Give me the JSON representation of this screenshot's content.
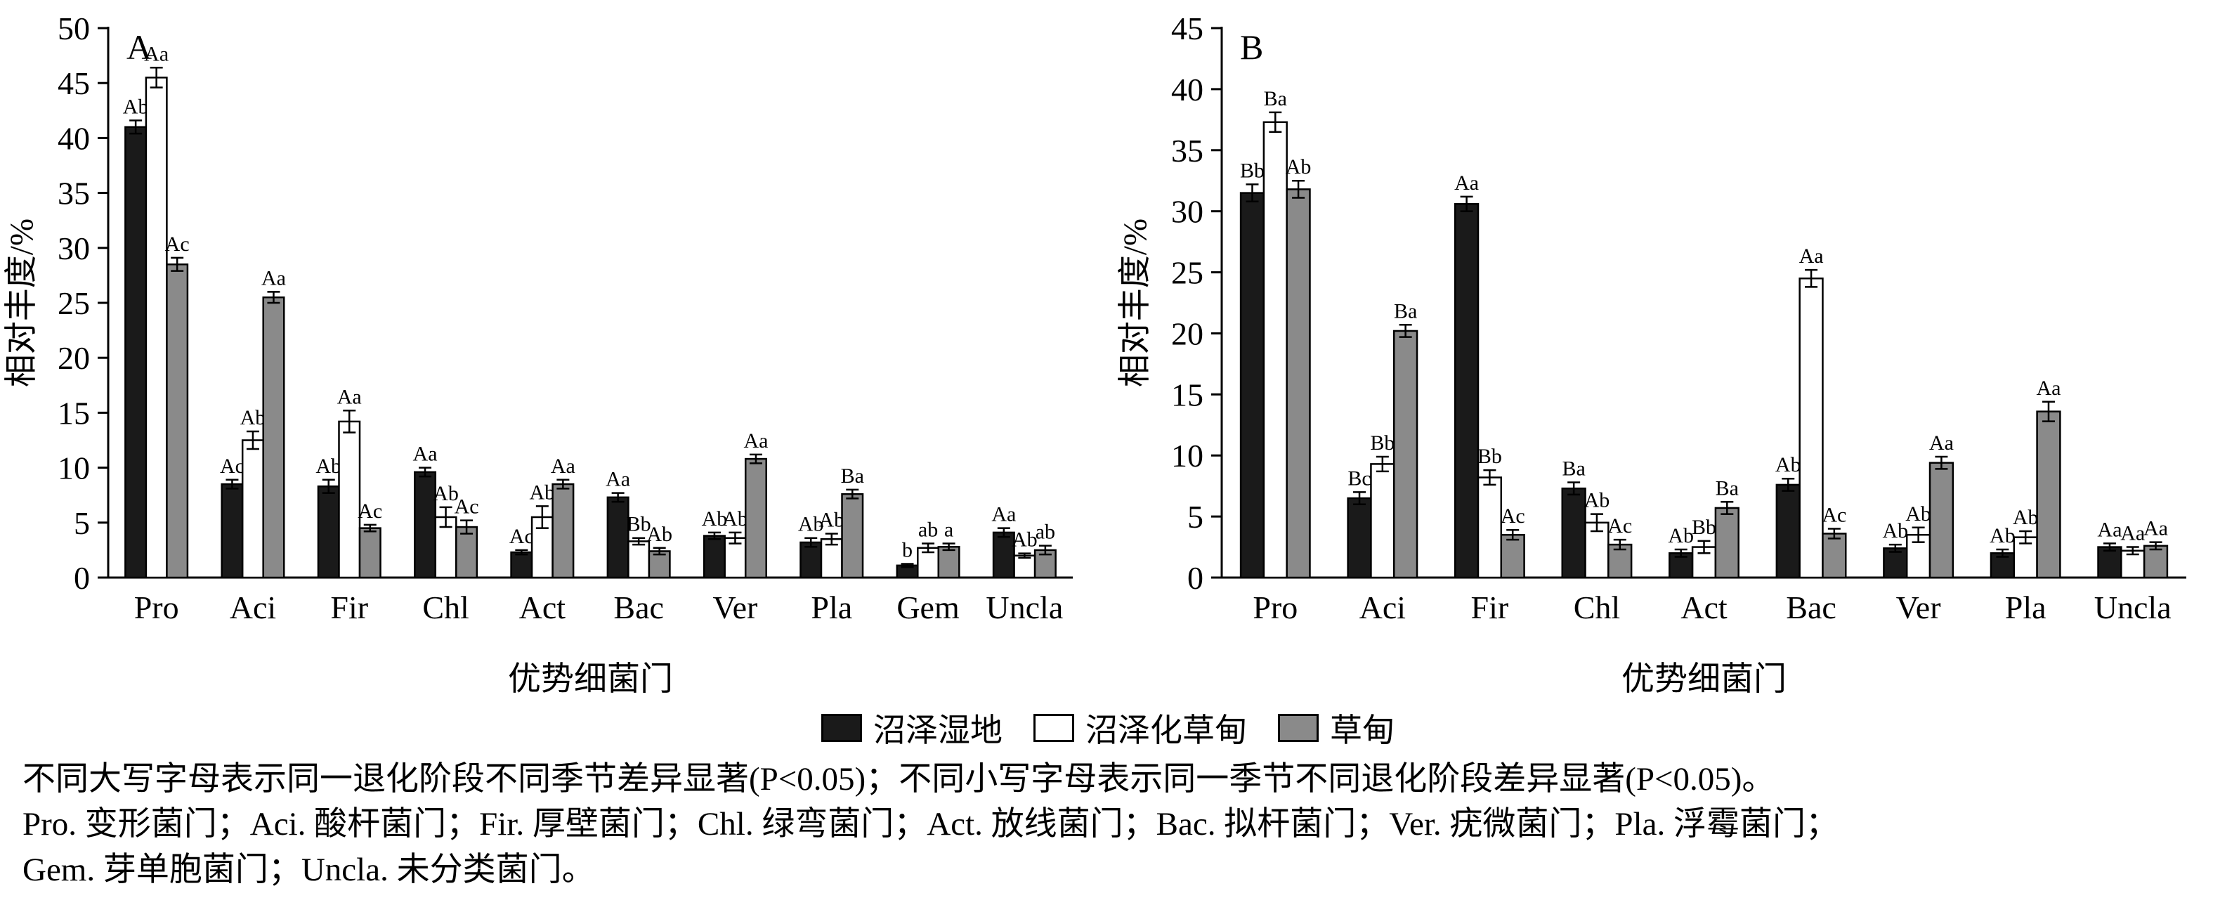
{
  "figure": {
    "legend": {
      "items": [
        {
          "label": "沼泽湿地",
          "fill": "#1a1a1a",
          "stroke": "#000000"
        },
        {
          "label": "沼泽化草甸",
          "fill": "#ffffff",
          "stroke": "#000000"
        },
        {
          "label": "草甸",
          "fill": "#8a8a8a",
          "stroke": "#000000"
        }
      ]
    },
    "caption_lines": [
      "不同大写字母表示同一退化阶段不同季节差异显著(P<0.05)；不同小写字母表示同一季节不同退化阶段差异显著(P<0.05)。",
      "Pro. 变形菌门；Aci. 酸杆菌门；Fir. 厚壁菌门；Chl. 绿弯菌门；Act. 放线菌门；Bac. 拟杆菌门；Ver. 疣微菌门；Pla. 浮霉菌门；",
      "Gem. 芽单胞菌门；Uncla. 未分类菌门。"
    ]
  },
  "chart_data": [
    {
      "type": "bar",
      "panel_label": "A",
      "xlabel": "优势细菌门",
      "ylabel": "相对丰度/%",
      "ylim": [
        0,
        50
      ],
      "ytick_step": 5,
      "grid": false,
      "categories": [
        "Pro",
        "Aci",
        "Fir",
        "Chl",
        "Act",
        "Bac",
        "Ver",
        "Pla",
        "Gem",
        "Uncla"
      ],
      "series": [
        {
          "name": "沼泽湿地",
          "values": [
            41.0,
            8.5,
            8.3,
            9.6,
            2.3,
            7.3,
            3.8,
            3.2,
            1.1,
            4.1
          ],
          "errors": [
            0.6,
            0.4,
            0.6,
            0.4,
            0.2,
            0.4,
            0.3,
            0.4,
            0.15,
            0.4
          ],
          "labels": [
            "Ab",
            "Ac",
            "Ab",
            "Aa",
            "Ac",
            "Aa",
            "Ab",
            "Ab",
            "b",
            "Aa"
          ]
        },
        {
          "name": "沼泽化草甸",
          "values": [
            45.5,
            12.5,
            14.2,
            5.5,
            5.5,
            3.3,
            3.6,
            3.5,
            2.7,
            2.0
          ],
          "errors": [
            0.9,
            0.8,
            1.0,
            0.9,
            1.0,
            0.3,
            0.5,
            0.5,
            0.4,
            0.2
          ],
          "labels": [
            "Aa",
            "Ab",
            "Aa",
            "Ab",
            "Ab",
            "Bb",
            "Ab",
            "Ab",
            "ab",
            "Ab"
          ]
        },
        {
          "name": "草甸",
          "values": [
            28.5,
            25.5,
            4.5,
            4.6,
            8.5,
            2.4,
            10.8,
            7.6,
            2.8,
            2.5
          ],
          "errors": [
            0.6,
            0.5,
            0.3,
            0.6,
            0.4,
            0.3,
            0.4,
            0.4,
            0.3,
            0.4
          ],
          "labels": [
            "Ac",
            "Aa",
            "Ac",
            "Ac",
            "Aa",
            "Ab",
            "Aa",
            "Ba",
            "a",
            "ab"
          ]
        }
      ]
    },
    {
      "type": "bar",
      "panel_label": "B",
      "xlabel": "优势细菌门",
      "ylabel": "相对丰度/%",
      "ylim": [
        0,
        45
      ],
      "ytick_step": 5,
      "grid": false,
      "categories": [
        "Pro",
        "Aci",
        "Fir",
        "Chl",
        "Act",
        "Bac",
        "Ver",
        "Pla",
        "Uncla"
      ],
      "series": [
        {
          "name": "沼泽湿地",
          "values": [
            31.5,
            6.5,
            30.6,
            7.3,
            2.0,
            7.6,
            2.4,
            2.0,
            2.5
          ],
          "errors": [
            0.7,
            0.5,
            0.6,
            0.5,
            0.3,
            0.5,
            0.3,
            0.3,
            0.3
          ],
          "labels": [
            "Bb",
            "Bc",
            "Aa",
            "Ba",
            "Ab",
            "Ab",
            "Ab",
            "Ab",
            "Aa"
          ]
        },
        {
          "name": "沼泽化草甸",
          "values": [
            37.3,
            9.3,
            8.2,
            4.5,
            2.5,
            24.5,
            3.5,
            3.3,
            2.2
          ],
          "errors": [
            0.8,
            0.6,
            0.6,
            0.7,
            0.5,
            0.7,
            0.6,
            0.5,
            0.3
          ],
          "labels": [
            "Ba",
            "Bb",
            "Bb",
            "Ab",
            "Bb",
            "Aa",
            "Ab",
            "Ab",
            "Aa"
          ]
        },
        {
          "name": "草甸",
          "values": [
            31.8,
            20.2,
            3.5,
            2.7,
            5.7,
            3.6,
            9.4,
            13.6,
            2.6
          ],
          "errors": [
            0.7,
            0.5,
            0.4,
            0.4,
            0.5,
            0.4,
            0.5,
            0.8,
            0.3
          ],
          "labels": [
            "Ab",
            "Ba",
            "Ac",
            "Ac",
            "Ba",
            "Ac",
            "Aa",
            "Aa",
            "Aa"
          ]
        }
      ]
    }
  ]
}
